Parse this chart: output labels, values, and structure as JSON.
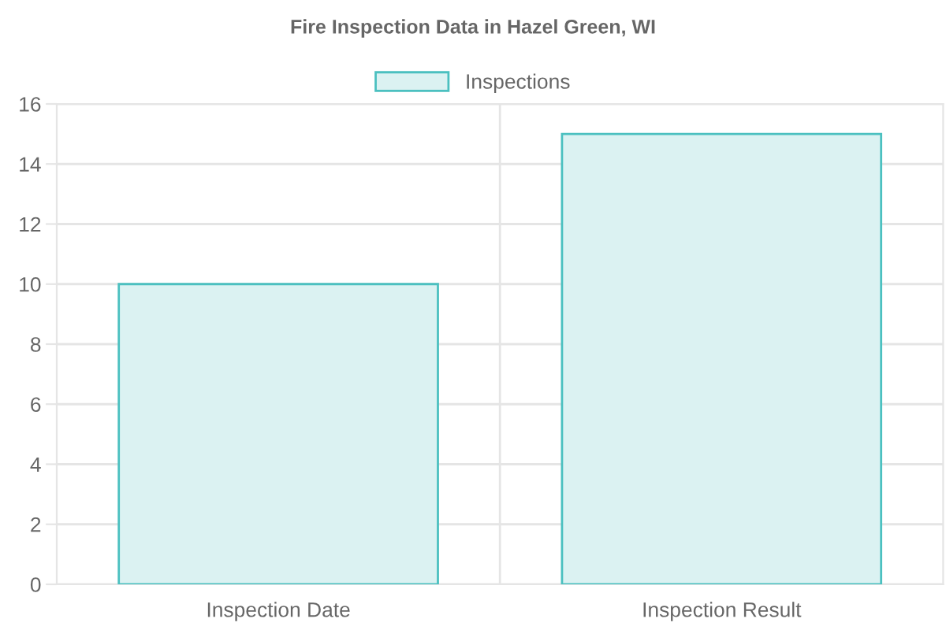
{
  "chart_data": {
    "type": "bar",
    "title": "Fire Inspection Data in Hazel Green, WI",
    "categories": [
      "Inspection Date",
      "Inspection Result"
    ],
    "series": [
      {
        "name": "Inspections",
        "color": "#dbf2f2",
        "values": [
          10,
          15
        ]
      }
    ],
    "ylim": [
      0,
      16
    ],
    "yticks": [
      0,
      2,
      4,
      6,
      8,
      10,
      12,
      14,
      16
    ],
    "grid": true,
    "legend": "top"
  }
}
